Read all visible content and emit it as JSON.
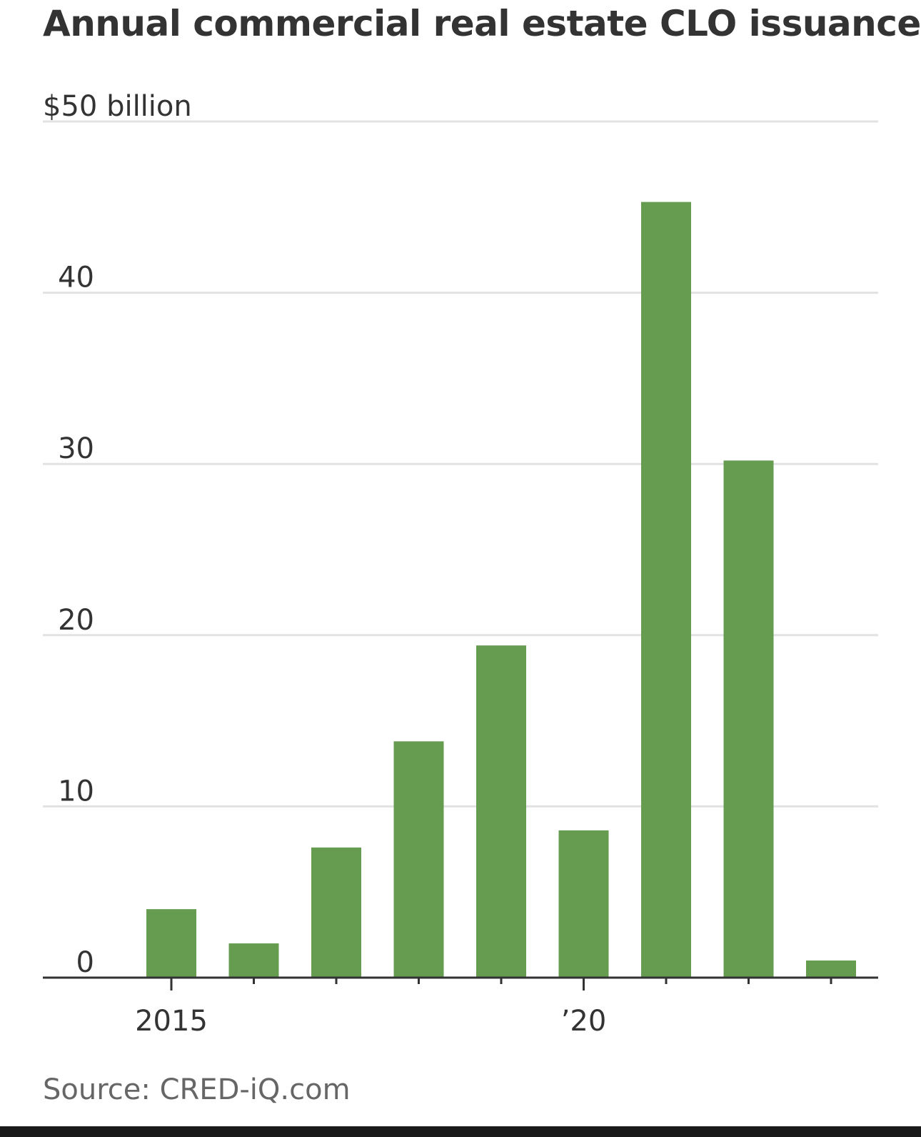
{
  "colors": {
    "bar": "#659c50",
    "grid": "#e2e2e2",
    "axis": "#333333",
    "text": "#333333",
    "source": "#666666"
  },
  "chart_data": {
    "type": "bar",
    "title": "Annual commercial real estate CLO issuance",
    "ylabel": "$50 billion",
    "xlabel": "",
    "ylim": [
      0,
      50
    ],
    "yticks": [
      {
        "value": 0,
        "label": "0"
      },
      {
        "value": 10,
        "label": "10"
      },
      {
        "value": 20,
        "label": "20"
      },
      {
        "value": 30,
        "label": "30"
      },
      {
        "value": 40,
        "label": "40"
      },
      {
        "value": 50,
        "label": "$50 billion"
      }
    ],
    "categories": [
      "2015",
      "2016",
      "2017",
      "2018",
      "2019",
      "2020",
      "2021",
      "2022",
      "2023"
    ],
    "tick_labels": [
      {
        "index": 0,
        "label": "2015"
      },
      {
        "index": 5,
        "label": "’20"
      }
    ],
    "values": [
      4.0,
      2.0,
      7.6,
      13.8,
      19.4,
      8.6,
      45.3,
      30.2,
      1.0
    ],
    "grid": true,
    "source": "Source: CRED-iQ.com"
  }
}
